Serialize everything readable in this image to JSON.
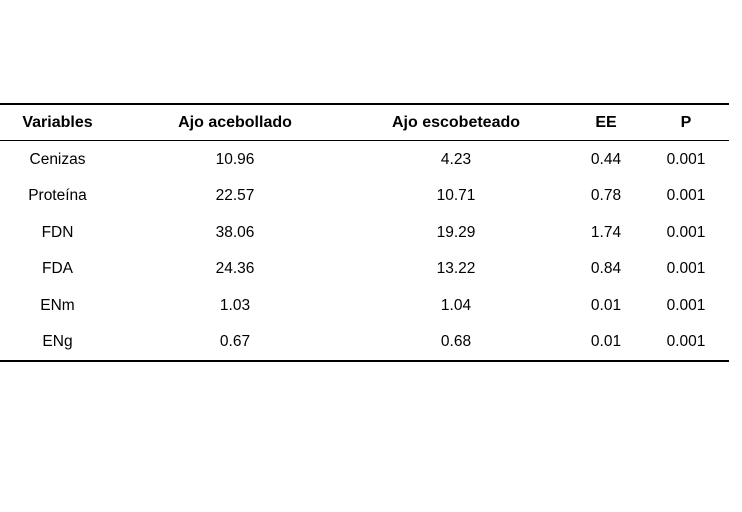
{
  "page": {
    "background": "#ffffff",
    "text_color": "#000000",
    "rule_color": "#000000"
  },
  "table": {
    "headers": [
      "Variables",
      "Ajo acebollado",
      "Ajo escobeteado",
      "EE",
      "P"
    ],
    "rows": [
      [
        "Cenizas",
        "10.96",
        "4.23",
        "0.44",
        "0.001"
      ],
      [
        "Proteína",
        "22.57",
        "10.71",
        "0.78",
        "0.001"
      ],
      [
        "FDN",
        "38.06",
        "19.29",
        "1.74",
        "0.001"
      ],
      [
        "FDA",
        "24.36",
        "13.22",
        "0.84",
        "0.001"
      ],
      [
        "ENm",
        "1.03",
        "1.04",
        "0.01",
        "0.001"
      ],
      [
        "ENg",
        "0.67",
        "0.68",
        "0.01",
        "0.001"
      ]
    ]
  }
}
